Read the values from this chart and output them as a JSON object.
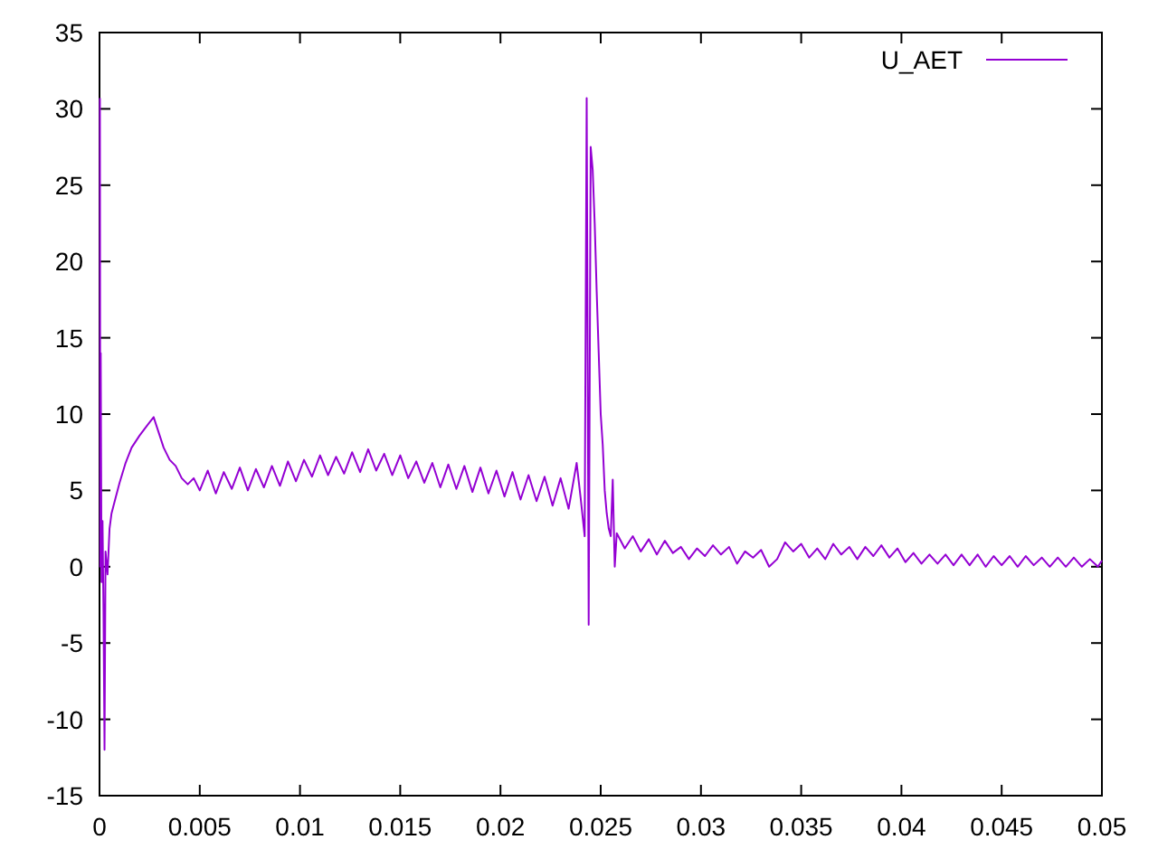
{
  "chart_data": {
    "type": "line",
    "xlim": [
      0,
      0.05
    ],
    "ylim": [
      -15,
      35
    ],
    "xticks": [
      0,
      0.005,
      0.01,
      0.015,
      0.02,
      0.025,
      0.03,
      0.035,
      0.04,
      0.045,
      0.05
    ],
    "yticks": [
      -15,
      -10,
      -5,
      0,
      5,
      10,
      15,
      20,
      25,
      30,
      35
    ],
    "legend": "top right",
    "grid": false,
    "marker": "none",
    "line_style": "solid",
    "series": [
      {
        "name": "U_AET",
        "color": "#9400d3",
        "x": [
          2e-05,
          4e-05,
          6e-05,
          0.0001,
          0.00015,
          0.0002,
          0.00025,
          0.0003,
          0.0004,
          0.0005,
          0.0006,
          0.0008,
          0.001,
          0.0013,
          0.0016,
          0.002,
          0.0024,
          0.0027,
          0.0029,
          0.0032,
          0.0035,
          0.0038,
          0.0041,
          0.0044,
          0.0047,
          0.005,
          0.0054,
          0.0058,
          0.0062,
          0.0066,
          0.007,
          0.0074,
          0.0078,
          0.0082,
          0.0086,
          0.009,
          0.0094,
          0.0098,
          0.0102,
          0.0106,
          0.011,
          0.0114,
          0.0118,
          0.0122,
          0.0126,
          0.013,
          0.0134,
          0.0138,
          0.0142,
          0.0146,
          0.015,
          0.0154,
          0.0158,
          0.0162,
          0.0166,
          0.017,
          0.0174,
          0.0178,
          0.0182,
          0.0186,
          0.019,
          0.0194,
          0.0198,
          0.0202,
          0.0206,
          0.021,
          0.0214,
          0.0218,
          0.0222,
          0.0226,
          0.023,
          0.0234,
          0.0238,
          0.024,
          0.0242,
          0.0243,
          0.0244,
          0.0245,
          0.0246,
          0.0247,
          0.0248,
          0.0249,
          0.025,
          0.0251,
          0.0252,
          0.0253,
          0.0254,
          0.0255,
          0.0256,
          0.0257,
          0.0258,
          0.0262,
          0.0266,
          0.027,
          0.0274,
          0.0278,
          0.0282,
          0.0286,
          0.029,
          0.0294,
          0.0298,
          0.0302,
          0.0306,
          0.031,
          0.0314,
          0.0318,
          0.0322,
          0.0326,
          0.033,
          0.0334,
          0.0338,
          0.0342,
          0.0346,
          0.035,
          0.0354,
          0.0358,
          0.0362,
          0.0366,
          0.037,
          0.0374,
          0.0378,
          0.0382,
          0.0386,
          0.039,
          0.0394,
          0.0398,
          0.0402,
          0.0406,
          0.041,
          0.0414,
          0.0418,
          0.0422,
          0.0426,
          0.043,
          0.0434,
          0.0438,
          0.0442,
          0.0446,
          0.045,
          0.0454,
          0.0458,
          0.0462,
          0.0466,
          0.047,
          0.0474,
          0.0478,
          0.0482,
          0.0486,
          0.049,
          0.0494,
          0.0498,
          0.05
        ],
        "values": [
          30.7,
          0,
          14,
          -1,
          3,
          -3,
          -12,
          1,
          -0.5,
          2.5,
          3.5,
          4.5,
          5.5,
          6.8,
          7.8,
          8.6,
          9.3,
          9.8,
          9.0,
          7.8,
          7.0,
          6.6,
          5.8,
          5.4,
          5.8,
          5.0,
          6.3,
          4.8,
          6.2,
          5.1,
          6.5,
          5.0,
          6.4,
          5.2,
          6.6,
          5.3,
          6.9,
          5.6,
          7.0,
          5.9,
          7.3,
          6.0,
          7.2,
          6.1,
          7.5,
          6.2,
          7.7,
          6.3,
          7.4,
          6.0,
          7.3,
          5.8,
          6.9,
          5.5,
          6.8,
          5.2,
          6.7,
          5.1,
          6.6,
          4.9,
          6.5,
          4.8,
          6.3,
          4.6,
          6.2,
          4.4,
          6.0,
          4.3,
          5.9,
          4.0,
          5.8,
          3.8,
          6.8,
          4.5,
          2.0,
          30.7,
          -3.8,
          27.5,
          26,
          22.5,
          18,
          14,
          10,
          8,
          5,
          3.5,
          2.5,
          2,
          5.7,
          0,
          2.2,
          1.2,
          2.0,
          1.0,
          1.8,
          0.8,
          1.7,
          0.9,
          1.3,
          0.5,
          1.2,
          0.7,
          1.4,
          0.8,
          1.3,
          0.2,
          1.0,
          0.6,
          1.1,
          0.0,
          0.5,
          1.6,
          1.0,
          1.5,
          0.6,
          1.2,
          0.5,
          1.5,
          0.8,
          1.3,
          0.5,
          1.3,
          0.7,
          1.4,
          0.6,
          1.2,
          0.3,
          0.9,
          0.2,
          0.8,
          0.2,
          0.8,
          0.1,
          0.8,
          0.1,
          0.8,
          0.0,
          0.7,
          0.1,
          0.7,
          0.0,
          0.7,
          0.1,
          0.6,
          0.0,
          0.6,
          0.0,
          0.6,
          0.0,
          0.5,
          0.0,
          0.4
        ]
      }
    ]
  }
}
